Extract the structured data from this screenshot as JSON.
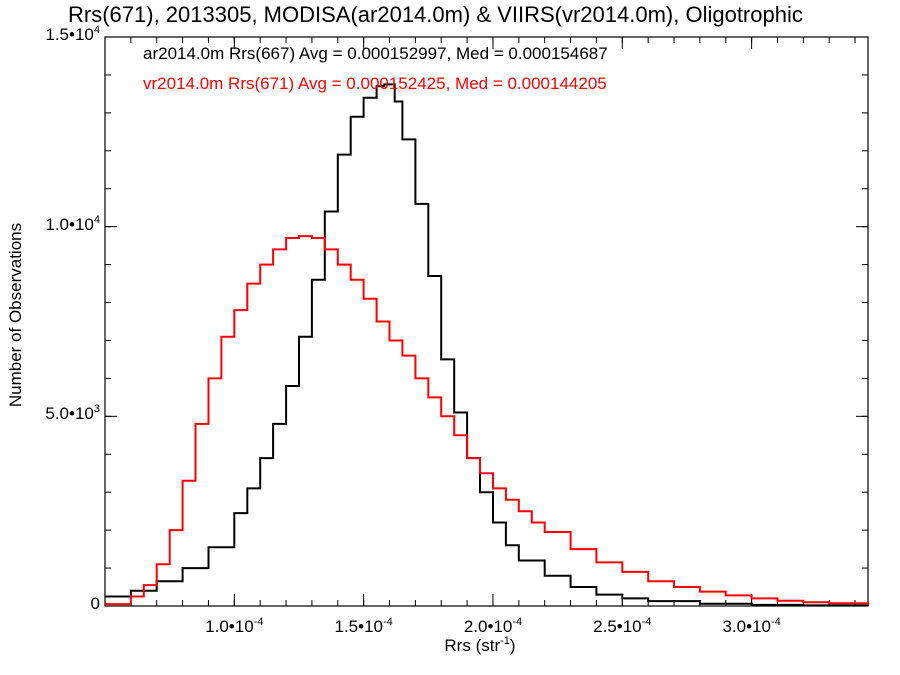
{
  "chart_data": {
    "type": "line",
    "step": true,
    "title": "Rrs(671), 2013305, MODISA(ar2014.0m) & VIIRS(vr2014.0m), Oligotrophic",
    "xlabel": "Rrs (str",
    "xlabel_sup": "-1",
    "xlabel_tail": ")",
    "ylabel": "Number of Observations",
    "xlim": [
      5e-05,
      0.000345
    ],
    "ylim": [
      0,
      15000
    ],
    "x_ticks": [
      0.0001,
      0.00015,
      0.0002,
      0.00025,
      0.0003
    ],
    "x_tick_labels": [
      {
        "base": "1.0•10",
        "exp": "-4"
      },
      {
        "base": "1.5•10",
        "exp": "-4"
      },
      {
        "base": "2.0•10",
        "exp": "-4"
      },
      {
        "base": "2.5•10",
        "exp": "-4"
      },
      {
        "base": "3.0•10",
        "exp": "-4"
      }
    ],
    "y_ticks": [
      0,
      5000,
      10000,
      15000
    ],
    "y_tick_labels": [
      {
        "base": "0",
        "exp": ""
      },
      {
        "base": "5.0•10",
        "exp": "3"
      },
      {
        "base": "1.0•10",
        "exp": "4"
      },
      {
        "base": "1.5•10",
        "exp": "4"
      }
    ],
    "series": [
      {
        "color": "#000000",
        "stats": "ar2014.0m Rrs(667) Avg = 0.000152997, Med = 0.000154687",
        "x": [
          5e-05,
          6e-05,
          7e-05,
          8e-05,
          9e-05,
          0.0001,
          0.000105,
          0.00011,
          0.000115,
          0.00012,
          0.000125,
          0.00013,
          0.000135,
          0.00014,
          0.000145,
          0.00015,
          0.000155,
          0.000158,
          0.000162,
          0.000165,
          0.00017,
          0.000175,
          0.00018,
          0.000185,
          0.00019,
          0.000195,
          0.0002,
          0.000205,
          0.00021,
          0.00022,
          0.00023,
          0.00024,
          0.00025,
          0.00026,
          0.00028,
          0.0003,
          0.00032,
          0.000345
        ],
        "y": [
          250,
          400,
          650,
          1000,
          1550,
          2450,
          3100,
          3900,
          4800,
          5800,
          7100,
          8600,
          10400,
          11900,
          12900,
          13400,
          13700,
          13750,
          13300,
          12300,
          10600,
          8700,
          6500,
          5100,
          3900,
          3000,
          2200,
          1600,
          1200,
          800,
          500,
          300,
          200,
          130,
          60,
          30,
          15,
          5
        ]
      },
      {
        "color": "#ff0000",
        "stats": "vr2014.0m Rrs(671) Avg = 0.000152425, Med = 0.000144205",
        "x": [
          5e-05,
          6e-05,
          6.5e-05,
          7e-05,
          7.5e-05,
          8e-05,
          8.5e-05,
          9e-05,
          9.5e-05,
          0.0001,
          0.000105,
          0.00011,
          0.000115,
          0.00012,
          0.000125,
          0.00013,
          0.000135,
          0.00014,
          0.000145,
          0.00015,
          0.000155,
          0.00016,
          0.000165,
          0.00017,
          0.000175,
          0.00018,
          0.000185,
          0.00019,
          0.000195,
          0.0002,
          0.000205,
          0.00021,
          0.000215,
          0.00022,
          0.00023,
          0.00024,
          0.00025,
          0.00026,
          0.00027,
          0.00028,
          0.00029,
          0.0003,
          0.00031,
          0.00032,
          0.00033,
          0.000345
        ],
        "y": [
          50,
          250,
          550,
          1100,
          2000,
          3300,
          4800,
          6000,
          7100,
          7800,
          8500,
          9000,
          9400,
          9700,
          9750,
          9700,
          9400,
          9000,
          8600,
          8100,
          7500,
          7000,
          6600,
          6000,
          5500,
          5000,
          4500,
          3900,
          3500,
          3100,
          2800,
          2500,
          2200,
          1950,
          1500,
          1150,
          900,
          650,
          500,
          380,
          280,
          200,
          140,
          100,
          70,
          30
        ]
      }
    ]
  }
}
